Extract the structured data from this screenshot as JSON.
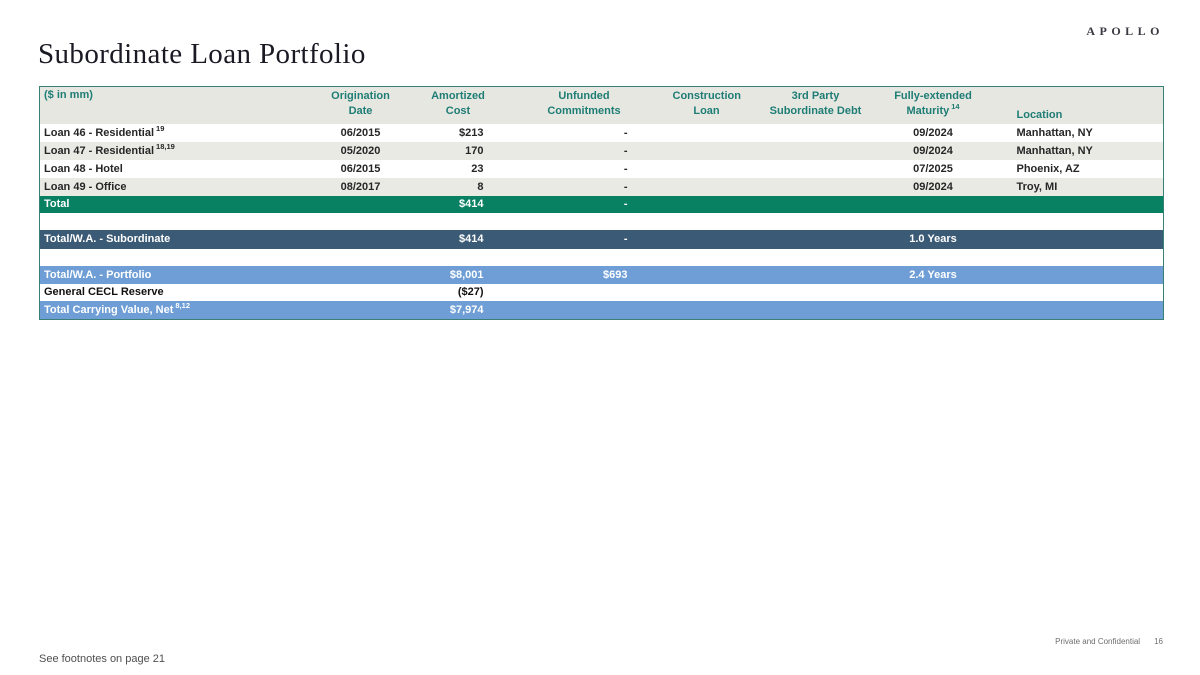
{
  "page": {
    "logo": "APOLLO",
    "title": "Subordinate Loan Portfolio",
    "footer_left": "See footnotes on page 21",
    "footer_right": "Private and Confidential",
    "page_number": "16"
  },
  "theme": {
    "teal": "#1e7d74",
    "green": "#088163",
    "darkblue": "#3b5a76",
    "lightblue": "#6e9ed5",
    "headerbg": "#e7e7e2",
    "altrow": "#eaeae5"
  },
  "table": {
    "unit_label": "($ in mm)",
    "headers": {
      "origination_l1": "Origination",
      "origination_l2": "Date",
      "amortized_l1": "Amortized",
      "amortized_l2": "Cost",
      "unfunded_l1": "Unfunded",
      "unfunded_l2": "Commitments",
      "construction_l1": "Construction",
      "construction_l2": "Loan",
      "third_party_l1": "3rd Party",
      "third_party_l2": "Subordinate Debt",
      "maturity_l1": "Fully-extended",
      "maturity_l2": "Maturity",
      "maturity_fn": "14",
      "location": "Location"
    },
    "loans": [
      {
        "label": "Loan 46 - Residential",
        "fn": "19",
        "date": "06/2015",
        "cost": "$213",
        "unfunded": "-",
        "maturity": "09/2024",
        "location": "Manhattan, NY"
      },
      {
        "label": "Loan 47 - Residential",
        "fn": "18,19",
        "date": "05/2020",
        "cost": "170",
        "unfunded": "-",
        "maturity": "09/2024",
        "location": "Manhattan, NY"
      },
      {
        "label": "Loan 48 - Hotel",
        "date": "06/2015",
        "cost": "23",
        "unfunded": "-",
        "maturity": "07/2025",
        "location": "Phoenix, AZ"
      },
      {
        "label": "Loan 49 - Office",
        "date": "08/2017",
        "cost": "8",
        "unfunded": "-",
        "maturity": "09/2024",
        "location": "Troy, MI"
      }
    ],
    "total_row": {
      "label": "Total",
      "cost": "$414",
      "unfunded": "-"
    },
    "subordinate_row": {
      "label": "Total/W.A. - Subordinate",
      "cost": "$414",
      "unfunded": "-",
      "maturity": "1.0 Years"
    },
    "portfolio_row": {
      "label": "Total/W.A. - Portfolio",
      "cost": "$8,001",
      "unfunded": "$693",
      "maturity": "2.4 Years"
    },
    "cecl_row": {
      "label": "General CECL Reserve",
      "cost": "($27)"
    },
    "carrying_row": {
      "label": "Total Carrying Value, Net",
      "fn": "8,12",
      "cost": "$7,974"
    }
  }
}
